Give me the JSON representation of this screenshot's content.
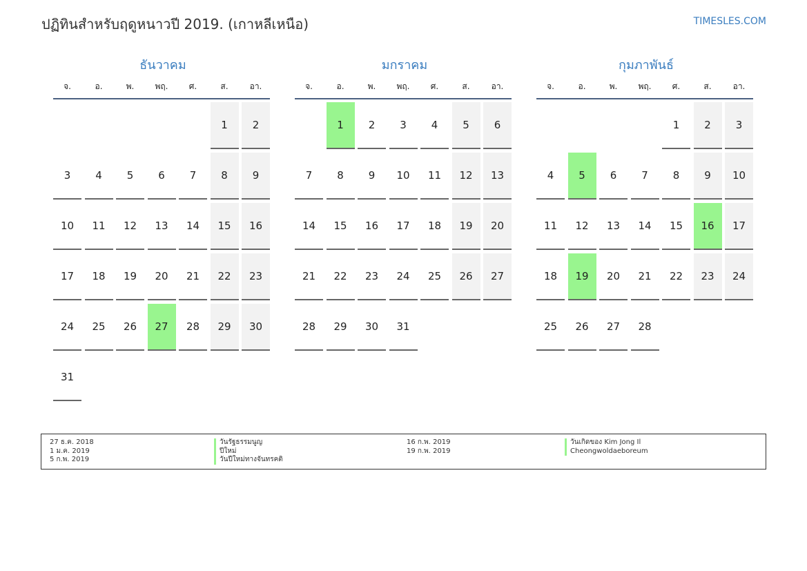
{
  "header": {
    "title": "ปฏิทินสำหรับฤดูหนาวปี 2019. (เกาหลีเหนือ)",
    "site": "TIMESLES.COM"
  },
  "weekdays": [
    "จ.",
    "อ.",
    "พ.",
    "พฤ.",
    "ศ.",
    "ส.",
    "อา."
  ],
  "months": [
    {
      "name": "ธันวาคม",
      "start_offset": 5,
      "days": 31,
      "holidays": [
        27
      ]
    },
    {
      "name": "มกราคม",
      "start_offset": 1,
      "days": 31,
      "holidays": [
        1
      ]
    },
    {
      "name": "กุมภาพันธ์",
      "start_offset": 4,
      "days": 28,
      "holidays": [
        5,
        16,
        19
      ]
    }
  ],
  "colors": {
    "holiday": "#99f58f",
    "weekend": "#f2f2f2",
    "month_title": "#3a7dbf"
  },
  "legend": [
    {
      "date": "27 ธ.ค. 2018",
      "name": "วันรัฐธรรมนูญ"
    },
    {
      "date": "1 ม.ค. 2019",
      "name": "ปีใหม่"
    },
    {
      "date": "5 ก.พ. 2019",
      "name": "วันปีใหม่ทางจันทรคติ"
    },
    {
      "date": "16 ก.พ. 2019",
      "name": "วันเกิดของ Kim Jong Il"
    },
    {
      "date": "19 ก.พ. 2019",
      "name": "Cheongwoldaeboreum"
    }
  ]
}
